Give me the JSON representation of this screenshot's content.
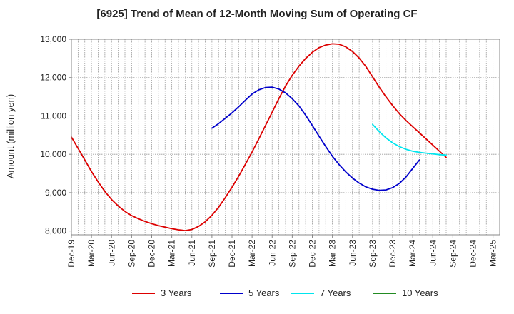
{
  "chart_data": {
    "type": "line",
    "title": "[6925]  Trend of Mean of 12-Month Moving Sum of Operating CF",
    "xlabel": "",
    "ylabel": "Amount (million yen)",
    "ylim": [
      7900,
      13000
    ],
    "y_ticks": [
      8000,
      9000,
      10000,
      11000,
      12000,
      13000
    ],
    "y_tick_labels": [
      "8,000",
      "9,000",
      "10,000",
      "11,000",
      "12,000",
      "13,000"
    ],
    "x_tick_labels": [
      "Dec-19",
      "Mar-20",
      "Jun-20",
      "Sep-20",
      "Dec-20",
      "Mar-21",
      "Jun-21",
      "Sep-21",
      "Dec-21",
      "Mar-22",
      "Jun-22",
      "Sep-22",
      "Dec-22",
      "Mar-23",
      "Jun-23",
      "Sep-23",
      "Dec-23",
      "Mar-24",
      "Jun-24",
      "Sep-24",
      "Dec-24",
      "Mar-25"
    ],
    "x_months_start": "Dec-19",
    "x_months_count": 64,
    "grid": true,
    "legend_position": "bottom",
    "series": [
      {
        "name": "3 Years",
        "color": "#dd0000",
        "start_index": 0,
        "values": [
          10450,
          10150,
          9850,
          9550,
          9280,
          9030,
          8820,
          8650,
          8510,
          8400,
          8320,
          8250,
          8190,
          8140,
          8100,
          8060,
          8030,
          8010,
          8040,
          8120,
          8240,
          8410,
          8620,
          8870,
          9140,
          9430,
          9740,
          10060,
          10400,
          10750,
          11100,
          11450,
          11780,
          12060,
          12300,
          12500,
          12660,
          12780,
          12850,
          12880,
          12870,
          12800,
          12680,
          12510,
          12290,
          12020,
          11750,
          11500,
          11270,
          11060,
          10880,
          10720,
          10560,
          10400,
          10240,
          10080,
          9920
        ]
      },
      {
        "name": "5 Years",
        "color": "#0000cc",
        "start_index": 21,
        "values": [
          10680,
          10800,
          10940,
          11080,
          11240,
          11410,
          11570,
          11680,
          11740,
          11750,
          11700,
          11600,
          11450,
          11260,
          11020,
          10750,
          10470,
          10200,
          9950,
          9730,
          9540,
          9380,
          9250,
          9150,
          9090,
          9060,
          9070,
          9130,
          9240,
          9410,
          9630,
          9850
        ]
      },
      {
        "name": "7 Years",
        "color": "#00e5ee",
        "start_index": 45,
        "values": [
          10780,
          10590,
          10430,
          10300,
          10200,
          10130,
          10080,
          10050,
          10030,
          10010,
          9990,
          9980
        ]
      },
      {
        "name": "10 Years",
        "color": "#228b22",
        "start_index": 0,
        "values": []
      }
    ]
  }
}
